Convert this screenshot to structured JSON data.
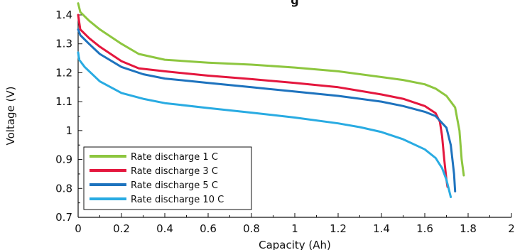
{
  "chart_data": {
    "type": "line",
    "title": "g",
    "xlabel": "Capacity (Ah)",
    "ylabel": "Voltage (V)",
    "xlim": [
      0,
      2
    ],
    "ylim": [
      0.7,
      1.4
    ],
    "xticks": [
      0,
      0.2,
      0.4,
      0.6,
      0.8,
      1,
      1.2,
      1.4,
      1.6,
      1.8,
      2
    ],
    "xtick_labels": [
      "0",
      "0.2",
      "0.4",
      "0.6",
      "0.8",
      "1",
      "1.2",
      "1.4",
      "1.6",
      "1.8",
      "2"
    ],
    "yticks": [
      0.7,
      0.8,
      0.9,
      1,
      1.1,
      1.2,
      1.3,
      1.4
    ],
    "ytick_labels": [
      "0.7",
      "0.8",
      "0.9",
      "1",
      "1.1",
      "1.2",
      "1.3",
      "1.4"
    ],
    "grid": false,
    "legend_position": "bottom-left",
    "series": [
      {
        "name": "Rate discharge 1 C",
        "color": "#8DC63F",
        "points": [
          [
            0,
            1.44
          ],
          [
            0.01,
            1.41
          ],
          [
            0.05,
            1.38
          ],
          [
            0.1,
            1.35
          ],
          [
            0.2,
            1.3
          ],
          [
            0.28,
            1.265
          ],
          [
            0.4,
            1.245
          ],
          [
            0.6,
            1.235
          ],
          [
            0.8,
            1.228
          ],
          [
            1.0,
            1.218
          ],
          [
            1.2,
            1.205
          ],
          [
            1.4,
            1.185
          ],
          [
            1.5,
            1.175
          ],
          [
            1.6,
            1.16
          ],
          [
            1.65,
            1.145
          ],
          [
            1.7,
            1.12
          ],
          [
            1.74,
            1.08
          ],
          [
            1.76,
            1.0
          ],
          [
            1.77,
            0.9
          ],
          [
            1.78,
            0.845
          ]
        ]
      },
      {
        "name": "Rate discharge 3 C",
        "color": "#E4173E",
        "points": [
          [
            0,
            1.4
          ],
          [
            0.01,
            1.35
          ],
          [
            0.05,
            1.32
          ],
          [
            0.1,
            1.29
          ],
          [
            0.2,
            1.24
          ],
          [
            0.28,
            1.215
          ],
          [
            0.4,
            1.205
          ],
          [
            0.6,
            1.19
          ],
          [
            0.8,
            1.178
          ],
          [
            1.0,
            1.165
          ],
          [
            1.2,
            1.15
          ],
          [
            1.4,
            1.125
          ],
          [
            1.5,
            1.11
          ],
          [
            1.6,
            1.085
          ],
          [
            1.65,
            1.06
          ],
          [
            1.67,
            1.03
          ],
          [
            1.68,
            0.98
          ],
          [
            1.69,
            0.9
          ],
          [
            1.7,
            0.83
          ],
          [
            1.705,
            0.805
          ]
        ]
      },
      {
        "name": "Rate discharge 5 C",
        "color": "#1E73BE",
        "points": [
          [
            0,
            1.35
          ],
          [
            0.01,
            1.33
          ],
          [
            0.05,
            1.3
          ],
          [
            0.1,
            1.265
          ],
          [
            0.2,
            1.22
          ],
          [
            0.3,
            1.195
          ],
          [
            0.4,
            1.18
          ],
          [
            0.6,
            1.165
          ],
          [
            0.8,
            1.15
          ],
          [
            1.0,
            1.135
          ],
          [
            1.2,
            1.12
          ],
          [
            1.4,
            1.1
          ],
          [
            1.5,
            1.085
          ],
          [
            1.6,
            1.065
          ],
          [
            1.65,
            1.05
          ],
          [
            1.7,
            1.01
          ],
          [
            1.72,
            0.95
          ],
          [
            1.735,
            0.85
          ],
          [
            1.74,
            0.79
          ]
        ]
      },
      {
        "name": "Rate discharge 10 C",
        "color": "#29ABE2",
        "points": [
          [
            0,
            1.27
          ],
          [
            0.005,
            1.245
          ],
          [
            0.03,
            1.22
          ],
          [
            0.1,
            1.17
          ],
          [
            0.2,
            1.13
          ],
          [
            0.3,
            1.11
          ],
          [
            0.4,
            1.095
          ],
          [
            0.6,
            1.078
          ],
          [
            0.8,
            1.062
          ],
          [
            1.0,
            1.045
          ],
          [
            1.2,
            1.025
          ],
          [
            1.3,
            1.012
          ],
          [
            1.4,
            0.995
          ],
          [
            1.5,
            0.97
          ],
          [
            1.6,
            0.935
          ],
          [
            1.65,
            0.905
          ],
          [
            1.68,
            0.87
          ],
          [
            1.7,
            0.83
          ],
          [
            1.72,
            0.77
          ]
        ]
      }
    ]
  }
}
